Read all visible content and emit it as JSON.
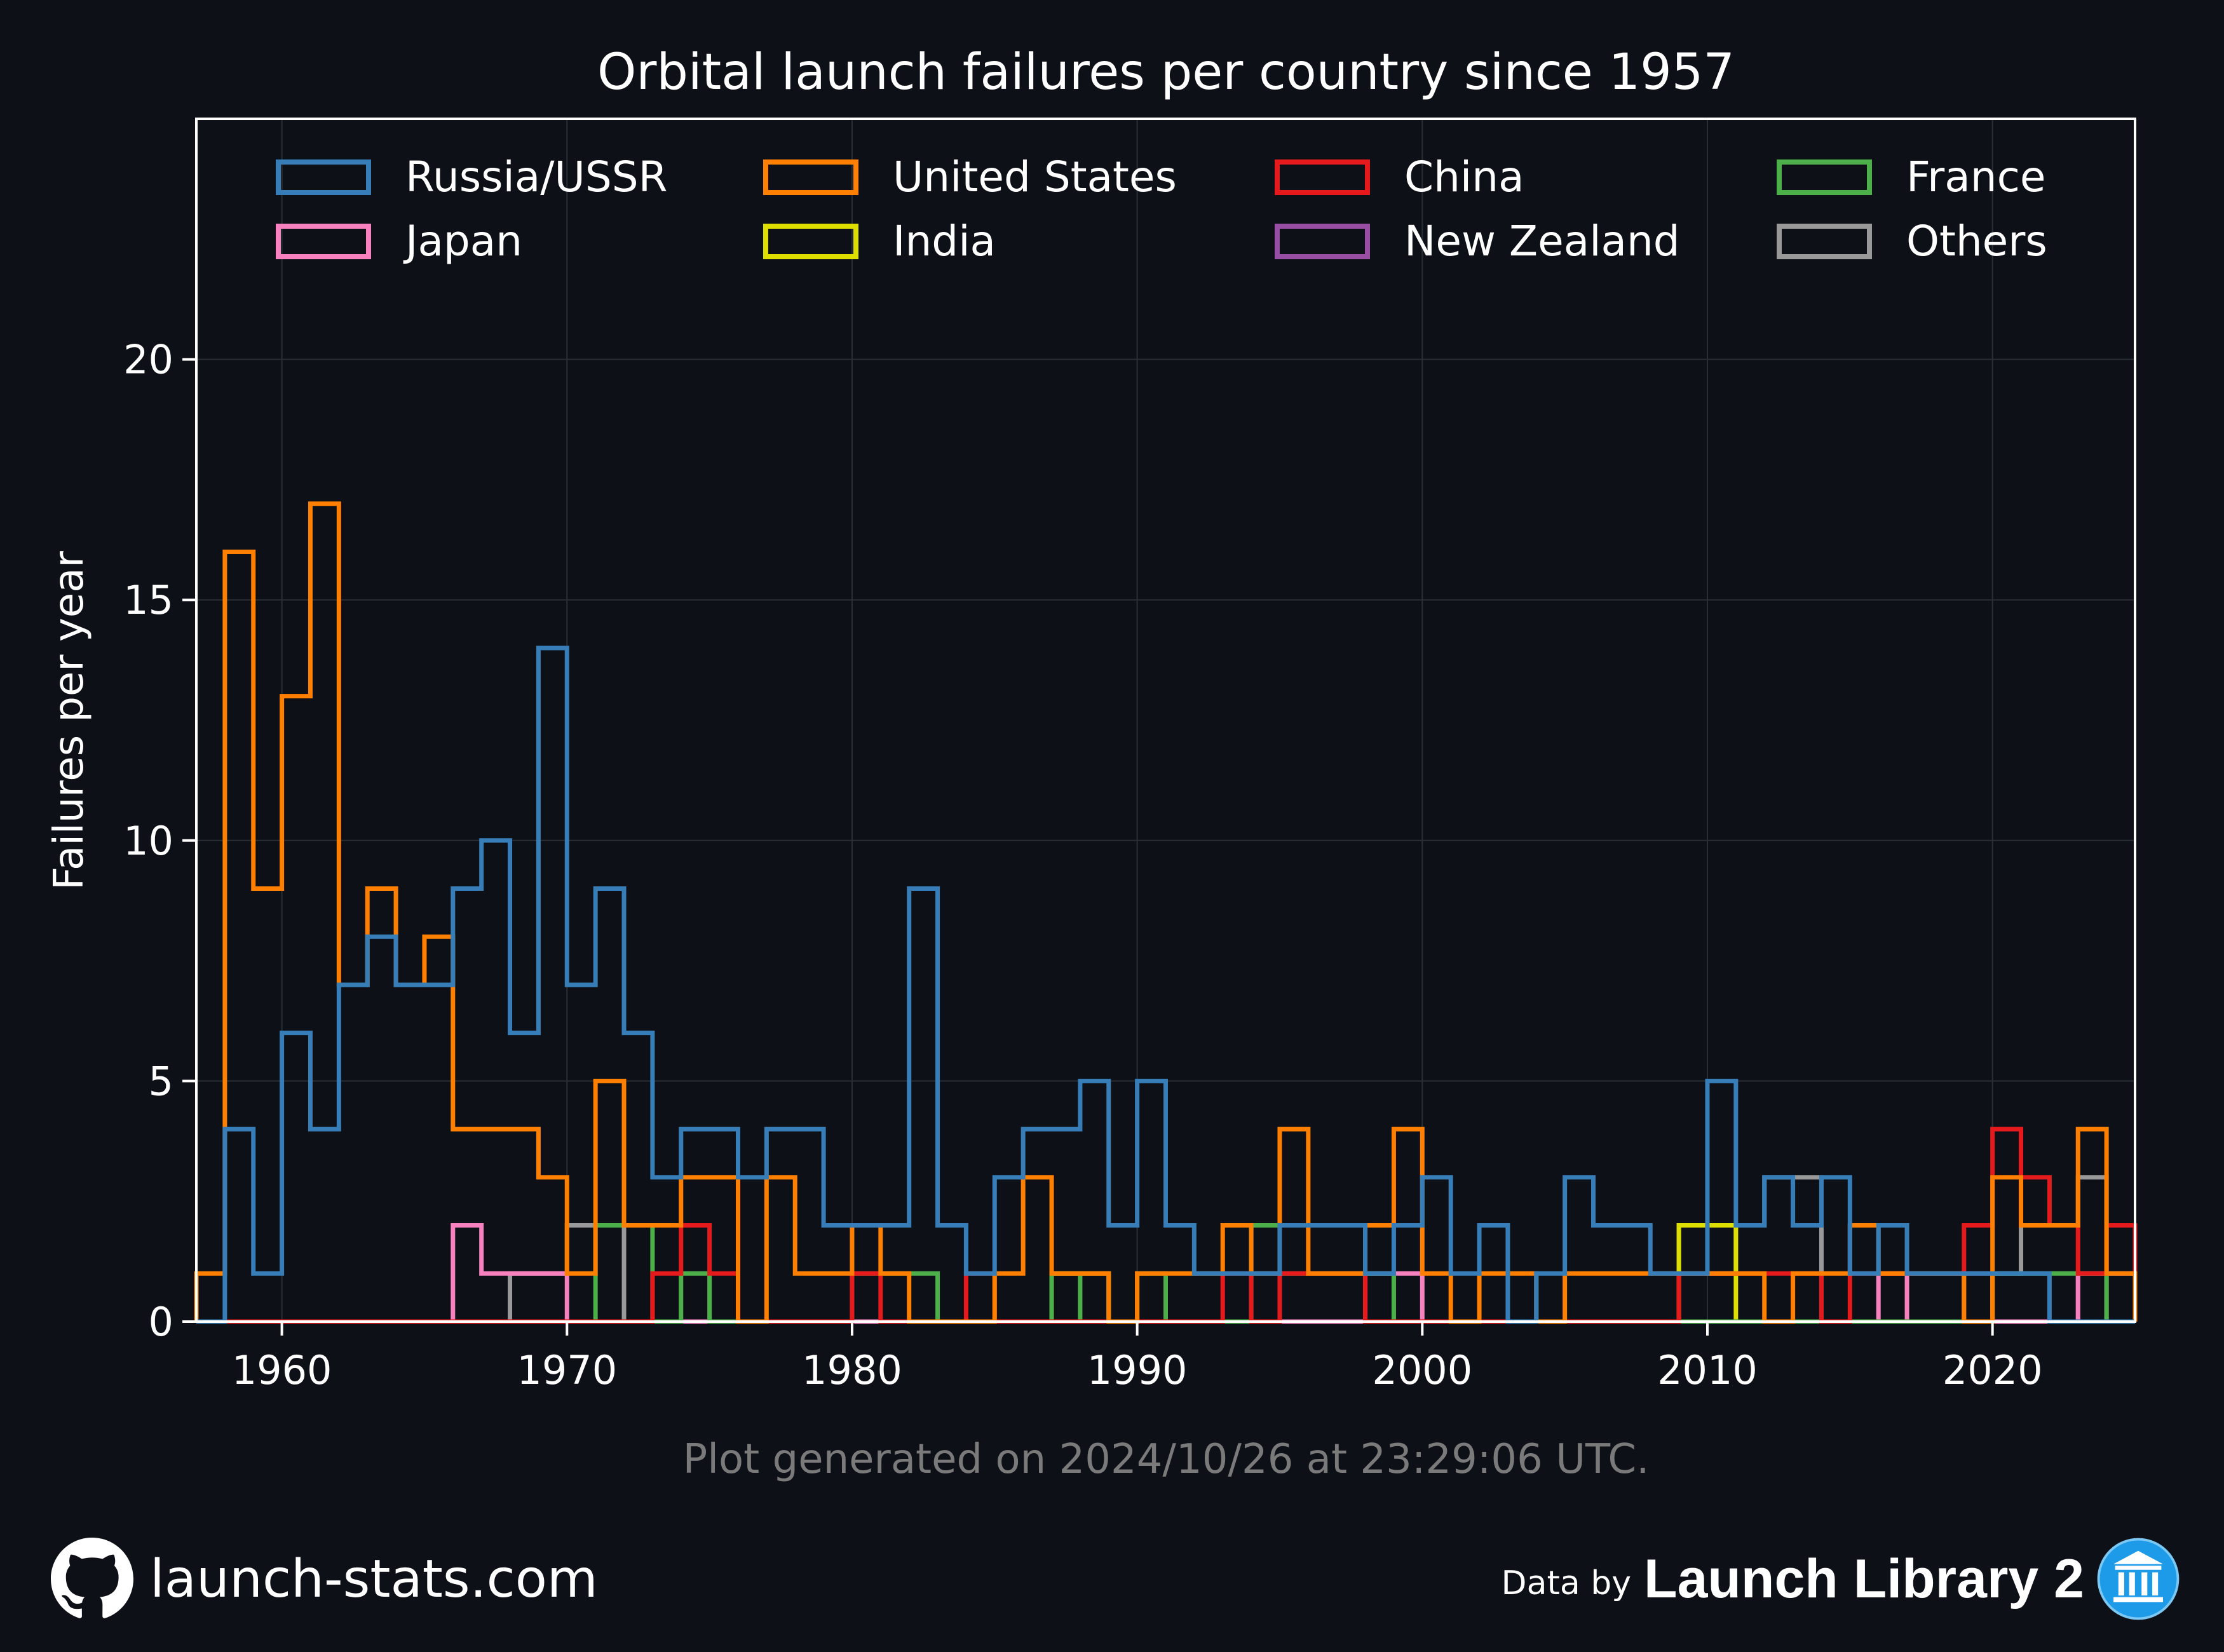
{
  "chart_data": {
    "type": "step",
    "title": "Orbital launch failures per country since 1957",
    "xlabel": "",
    "ylabel": "Failures per year",
    "xlim": [
      1957,
      2025
    ],
    "ylim": [
      0,
      25
    ],
    "x_ticks": [
      1960,
      1970,
      1980,
      1990,
      2000,
      2010,
      2020
    ],
    "y_ticks": [
      0,
      5,
      10,
      15,
      20
    ],
    "grid": true,
    "legend_position": "top",
    "bin_width_years": 1,
    "series": [
      {
        "name": "Russia/USSR",
        "color": "#377eb8",
        "start_year": 1957,
        "values": [
          0,
          4,
          1,
          6,
          4,
          7,
          8,
          7,
          7,
          9,
          10,
          6,
          14,
          7,
          9,
          6,
          3,
          4,
          4,
          3,
          4,
          4,
          2,
          2,
          2,
          9,
          2,
          1,
          3,
          4,
          4,
          5,
          2,
          5,
          2,
          1,
          1,
          1,
          2,
          2,
          2,
          1,
          2,
          3,
          1,
          2,
          0,
          1,
          3,
          2,
          2,
          1,
          1,
          5,
          2,
          3,
          2,
          3,
          1,
          2,
          1,
          1,
          1,
          1,
          1,
          0,
          0,
          0
        ]
      },
      {
        "name": "United States",
        "color": "#ff7f00",
        "start_year": 1957,
        "values": [
          1,
          16,
          9,
          13,
          17,
          7,
          9,
          7,
          8,
          4,
          4,
          4,
          3,
          1,
          5,
          2,
          2,
          3,
          3,
          0,
          3,
          1,
          1,
          2,
          1,
          0,
          0,
          0,
          1,
          3,
          1,
          1,
          0,
          1,
          1,
          1,
          2,
          1,
          4,
          1,
          1,
          2,
          4,
          1,
          0,
          1,
          1,
          0,
          1,
          1,
          1,
          1,
          1,
          1,
          1,
          0,
          1,
          1,
          2,
          1,
          1,
          1,
          0,
          3,
          2,
          2,
          4,
          1
        ]
      },
      {
        "name": "China",
        "color": "#e41a1c",
        "start_year": 1957,
        "values": [
          0,
          0,
          0,
          0,
          0,
          0,
          0,
          0,
          0,
          0,
          0,
          0,
          0,
          0,
          0,
          0,
          1,
          2,
          1,
          0,
          0,
          0,
          0,
          1,
          0,
          0,
          0,
          1,
          0,
          0,
          0,
          0,
          0,
          0,
          0,
          0,
          1,
          0,
          1,
          1,
          1,
          0,
          0,
          0,
          0,
          0,
          0,
          0,
          0,
          0,
          0,
          0,
          1,
          1,
          1,
          1,
          1,
          0,
          1,
          1,
          1,
          1,
          2,
          4,
          3,
          2,
          1,
          2
        ]
      },
      {
        "name": "France",
        "color": "#4daf4a",
        "start_year": 1957,
        "values": [
          0,
          0,
          0,
          0,
          0,
          0,
          0,
          0,
          0,
          0,
          0,
          0,
          0,
          0,
          2,
          2,
          0,
          1,
          0,
          0,
          0,
          0,
          0,
          1,
          1,
          1,
          0,
          0,
          0,
          0,
          1,
          0,
          0,
          1,
          0,
          0,
          0,
          2,
          1,
          1,
          1,
          1,
          0,
          0,
          0,
          0,
          0,
          0,
          0,
          0,
          0,
          0,
          0,
          0,
          0,
          0,
          0,
          0,
          0,
          0,
          0,
          0,
          0,
          1,
          1,
          1,
          1,
          0
        ]
      },
      {
        "name": "Japan",
        "color": "#f781bf",
        "start_year": 1957,
        "values": [
          0,
          0,
          0,
          0,
          0,
          0,
          0,
          0,
          0,
          2,
          1,
          1,
          1,
          0,
          0,
          0,
          0,
          0,
          0,
          0,
          0,
          0,
          0,
          0,
          0,
          0,
          0,
          0,
          0,
          0,
          0,
          0,
          0,
          0,
          0,
          0,
          0,
          0,
          0,
          0,
          0,
          1,
          1,
          0,
          0,
          0,
          0,
          0,
          0,
          0,
          0,
          0,
          0,
          0,
          0,
          0,
          0,
          0,
          0,
          1,
          0,
          0,
          0,
          0,
          0,
          0,
          1,
          0
        ]
      },
      {
        "name": "India",
        "color": "#dede00",
        "start_year": 1957,
        "values": [
          0,
          0,
          0,
          0,
          0,
          0,
          0,
          0,
          0,
          0,
          0,
          0,
          0,
          0,
          0,
          0,
          0,
          0,
          0,
          0,
          0,
          0,
          0,
          0,
          0,
          0,
          0,
          0,
          0,
          0,
          1,
          1,
          0,
          0,
          0,
          0,
          0,
          0,
          0,
          0,
          0,
          0,
          0,
          0,
          0,
          0,
          0,
          0,
          0,
          0,
          0,
          0,
          2,
          2,
          0,
          0,
          0,
          0,
          0,
          0,
          0,
          0,
          0,
          0,
          0,
          0,
          0,
          0
        ]
      },
      {
        "name": "New Zealand",
        "color": "#984ea3",
        "start_year": 1957,
        "values": [
          0,
          0,
          0,
          0,
          0,
          0,
          0,
          0,
          0,
          0,
          0,
          0,
          0,
          0,
          0,
          0,
          0,
          0,
          0,
          0,
          0,
          0,
          0,
          0,
          0,
          0,
          0,
          0,
          0,
          0,
          0,
          0,
          0,
          0,
          0,
          0,
          0,
          0,
          0,
          0,
          0,
          0,
          0,
          0,
          0,
          0,
          0,
          0,
          0,
          0,
          0,
          0,
          0,
          0,
          0,
          0,
          0,
          0,
          0,
          0,
          0,
          0,
          1,
          0,
          0,
          0,
          1,
          1
        ]
      },
      {
        "name": "Others",
        "color": "#999999",
        "start_year": 1957,
        "values": [
          0,
          0,
          0,
          0,
          0,
          0,
          0,
          0,
          0,
          0,
          0,
          1,
          1,
          2,
          2,
          0,
          0,
          0,
          0,
          0,
          0,
          0,
          0,
          0,
          0,
          0,
          0,
          0,
          0,
          0,
          0,
          0,
          0,
          0,
          0,
          0,
          0,
          0,
          0,
          0,
          0,
          0,
          0,
          0,
          0,
          0,
          0,
          0,
          0,
          0,
          0,
          0,
          2,
          1,
          2,
          3,
          3,
          0,
          0,
          0,
          0,
          0,
          0,
          1,
          2,
          2,
          3,
          1
        ]
      }
    ]
  },
  "note": "Plot generated on 2024/10/26 at 23:29:06 UTC.",
  "footer": {
    "site": "launch-stats.com",
    "data_by": "Data by",
    "provider": "Launch Library 2"
  },
  "colors": {
    "background": "#0d1117",
    "axes_edge": "#ffffff",
    "grid": "#2a2f36",
    "note": "#7a7a7a",
    "logo_blue": "#1e9be8"
  },
  "icons": {
    "footer_left": "github-icon",
    "footer_right": "library-building-icon"
  }
}
